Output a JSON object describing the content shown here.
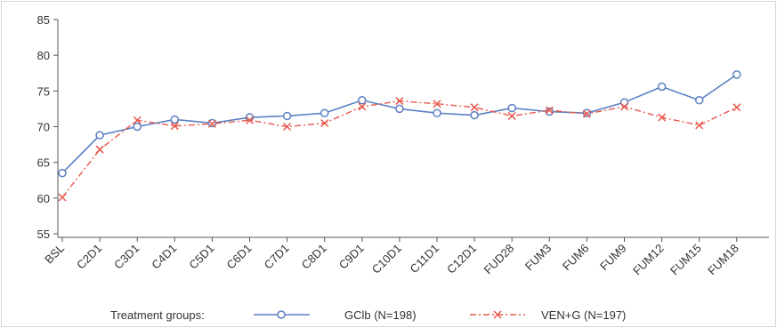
{
  "chart_data": {
    "type": "line",
    "categories": [
      "BSL",
      "C2D1",
      "C3D1",
      "C4D1",
      "C5D1",
      "C6D1",
      "C7D1",
      "C8D1",
      "C9D1",
      "C10D1",
      "C11D1",
      "C12D1",
      "FUD28",
      "FUM3",
      "FUM6",
      "FUM9",
      "FUM12",
      "FUM15",
      "FUM18"
    ],
    "series": [
      {
        "name": "GClb (N=198)",
        "color": "#5b7fc4",
        "marker": "circle",
        "line_style": "solid",
        "values": [
          63.5,
          68.8,
          70.0,
          71.0,
          70.5,
          71.3,
          71.5,
          71.9,
          73.7,
          72.5,
          71.9,
          71.6,
          72.6,
          72.1,
          71.9,
          73.4,
          75.6,
          73.7,
          77.3
        ]
      },
      {
        "name": "VEN+G (N=197)",
        "color": "#e8584c",
        "marker": "x",
        "line_style": "dash-dot",
        "values": [
          60.1,
          66.8,
          70.9,
          70.1,
          70.4,
          70.9,
          70.0,
          70.5,
          72.8,
          73.6,
          73.2,
          72.7,
          71.5,
          72.3,
          71.8,
          72.8,
          71.3,
          70.2,
          72.7
        ]
      }
    ],
    "y_ticks": [
      55,
      60,
      65,
      70,
      75,
      80,
      85
    ],
    "ylim": [
      54.5,
      85
    ],
    "grid": false,
    "legend_position": "bottom",
    "legend_title": "Treatment groups:",
    "title": "",
    "xlabel": "",
    "ylabel": ""
  }
}
